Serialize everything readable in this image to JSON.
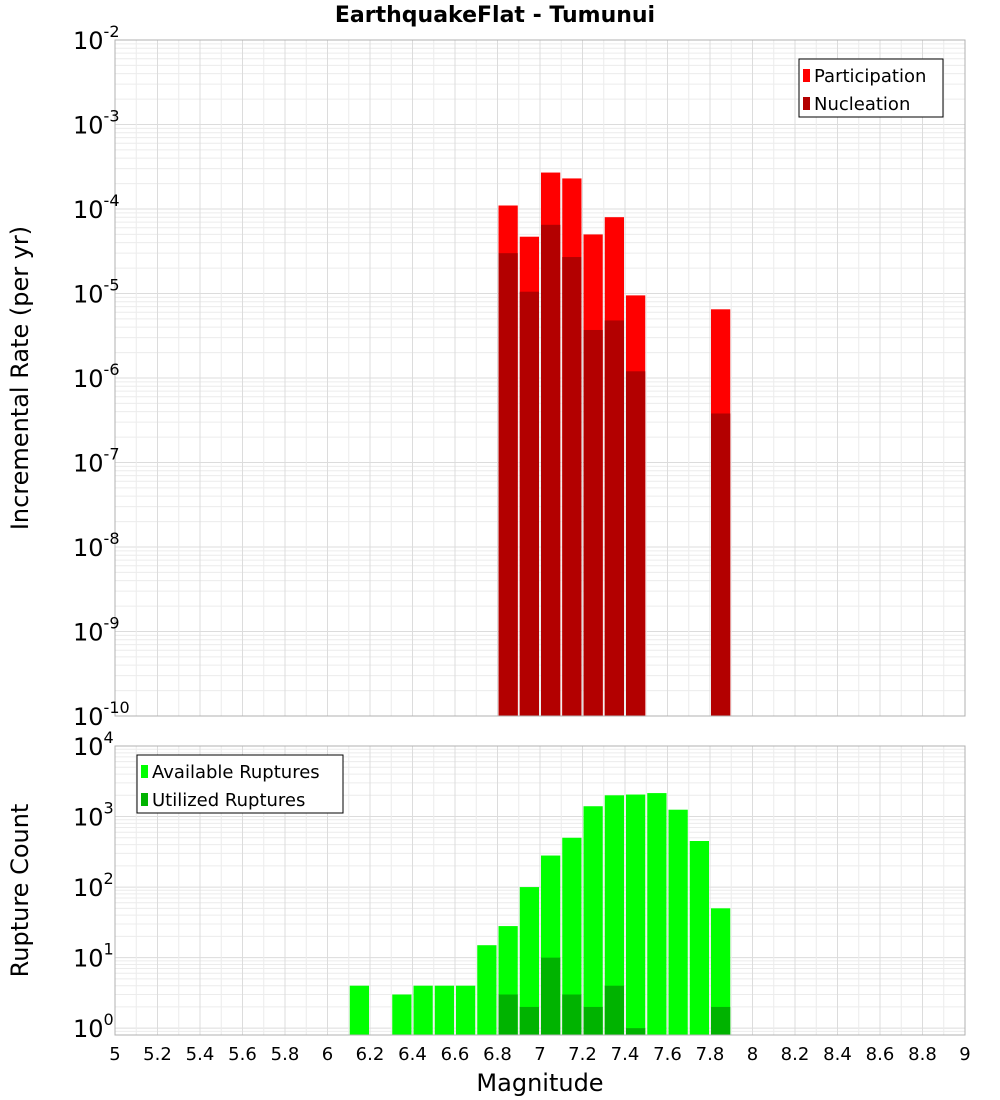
{
  "title": "EarthquakeFlat - Tumunui",
  "colors": {
    "participation": "#ff0000",
    "nucleation": "#b30000",
    "available": "#00ff00",
    "utilized": "#00b300"
  },
  "chart_data": [
    {
      "type": "bar",
      "title": "EarthquakeFlat - Tumunui",
      "xlabel": "Magnitude",
      "ylabel": "Incremental Rate (per yr)",
      "yscale": "log",
      "xlim": [
        5,
        9
      ],
      "ylim": [
        1e-10,
        0.01
      ],
      "legend_position": "top-right",
      "y_ticks": [
        {
          "base": "10",
          "exp": "-10"
        },
        {
          "base": "10",
          "exp": "-9"
        },
        {
          "base": "10",
          "exp": "-8"
        },
        {
          "base": "10",
          "exp": "-7"
        },
        {
          "base": "10",
          "exp": "-6"
        },
        {
          "base": "10",
          "exp": "-5"
        },
        {
          "base": "10",
          "exp": "-4"
        },
        {
          "base": "10",
          "exp": "-3"
        },
        {
          "base": "10",
          "exp": "-2"
        }
      ],
      "x": [
        6.85,
        6.95,
        7.05,
        7.15,
        7.25,
        7.35,
        7.45,
        7.85
      ],
      "series": [
        {
          "name": "Participation",
          "values": [
            0.00011,
            4.7e-05,
            0.00027,
            0.00023,
            5e-05,
            8e-05,
            9.5e-06,
            6.5e-06
          ]
        },
        {
          "name": "Nucleation",
          "values": [
            3e-05,
            1.05e-05,
            6.5e-05,
            2.7e-05,
            3.7e-06,
            4.8e-06,
            1.2e-06,
            3.8e-07
          ]
        }
      ]
    },
    {
      "type": "bar",
      "xlabel": "Magnitude",
      "ylabel": "Rupture Count",
      "yscale": "log",
      "xlim": [
        5,
        9
      ],
      "ylim": [
        0.8,
        10000
      ],
      "legend_position": "top-left",
      "y_ticks": [
        {
          "base": "10",
          "exp": "0"
        },
        {
          "base": "10",
          "exp": "1"
        },
        {
          "base": "10",
          "exp": "2"
        },
        {
          "base": "10",
          "exp": "3"
        },
        {
          "base": "10",
          "exp": "4"
        }
      ],
      "x_ticks": [
        "5",
        "5.2",
        "5.4",
        "5.6",
        "5.8",
        "6",
        "6.2",
        "6.4",
        "6.6",
        "6.8",
        "7",
        "7.2",
        "7.4",
        "7.6",
        "7.8",
        "8",
        "8.2",
        "8.4",
        "8.6",
        "8.8",
        "9"
      ],
      "x": [
        6.15,
        6.35,
        6.45,
        6.55,
        6.65,
        6.75,
        6.85,
        6.95,
        7.05,
        7.15,
        7.25,
        7.35,
        7.45,
        7.55,
        7.65,
        7.75,
        7.85
      ],
      "series": [
        {
          "name": "Available Ruptures",
          "values": [
            4,
            3,
            4,
            4,
            4,
            15,
            28,
            100,
            280,
            500,
            1400,
            2000,
            2050,
            2150,
            1250,
            450,
            50
          ]
        },
        {
          "name": "Utilized Ruptures",
          "values": [
            null,
            null,
            null,
            null,
            null,
            null,
            3,
            2,
            10,
            3,
            2,
            4,
            1,
            null,
            null,
            null,
            2
          ]
        }
      ]
    }
  ]
}
